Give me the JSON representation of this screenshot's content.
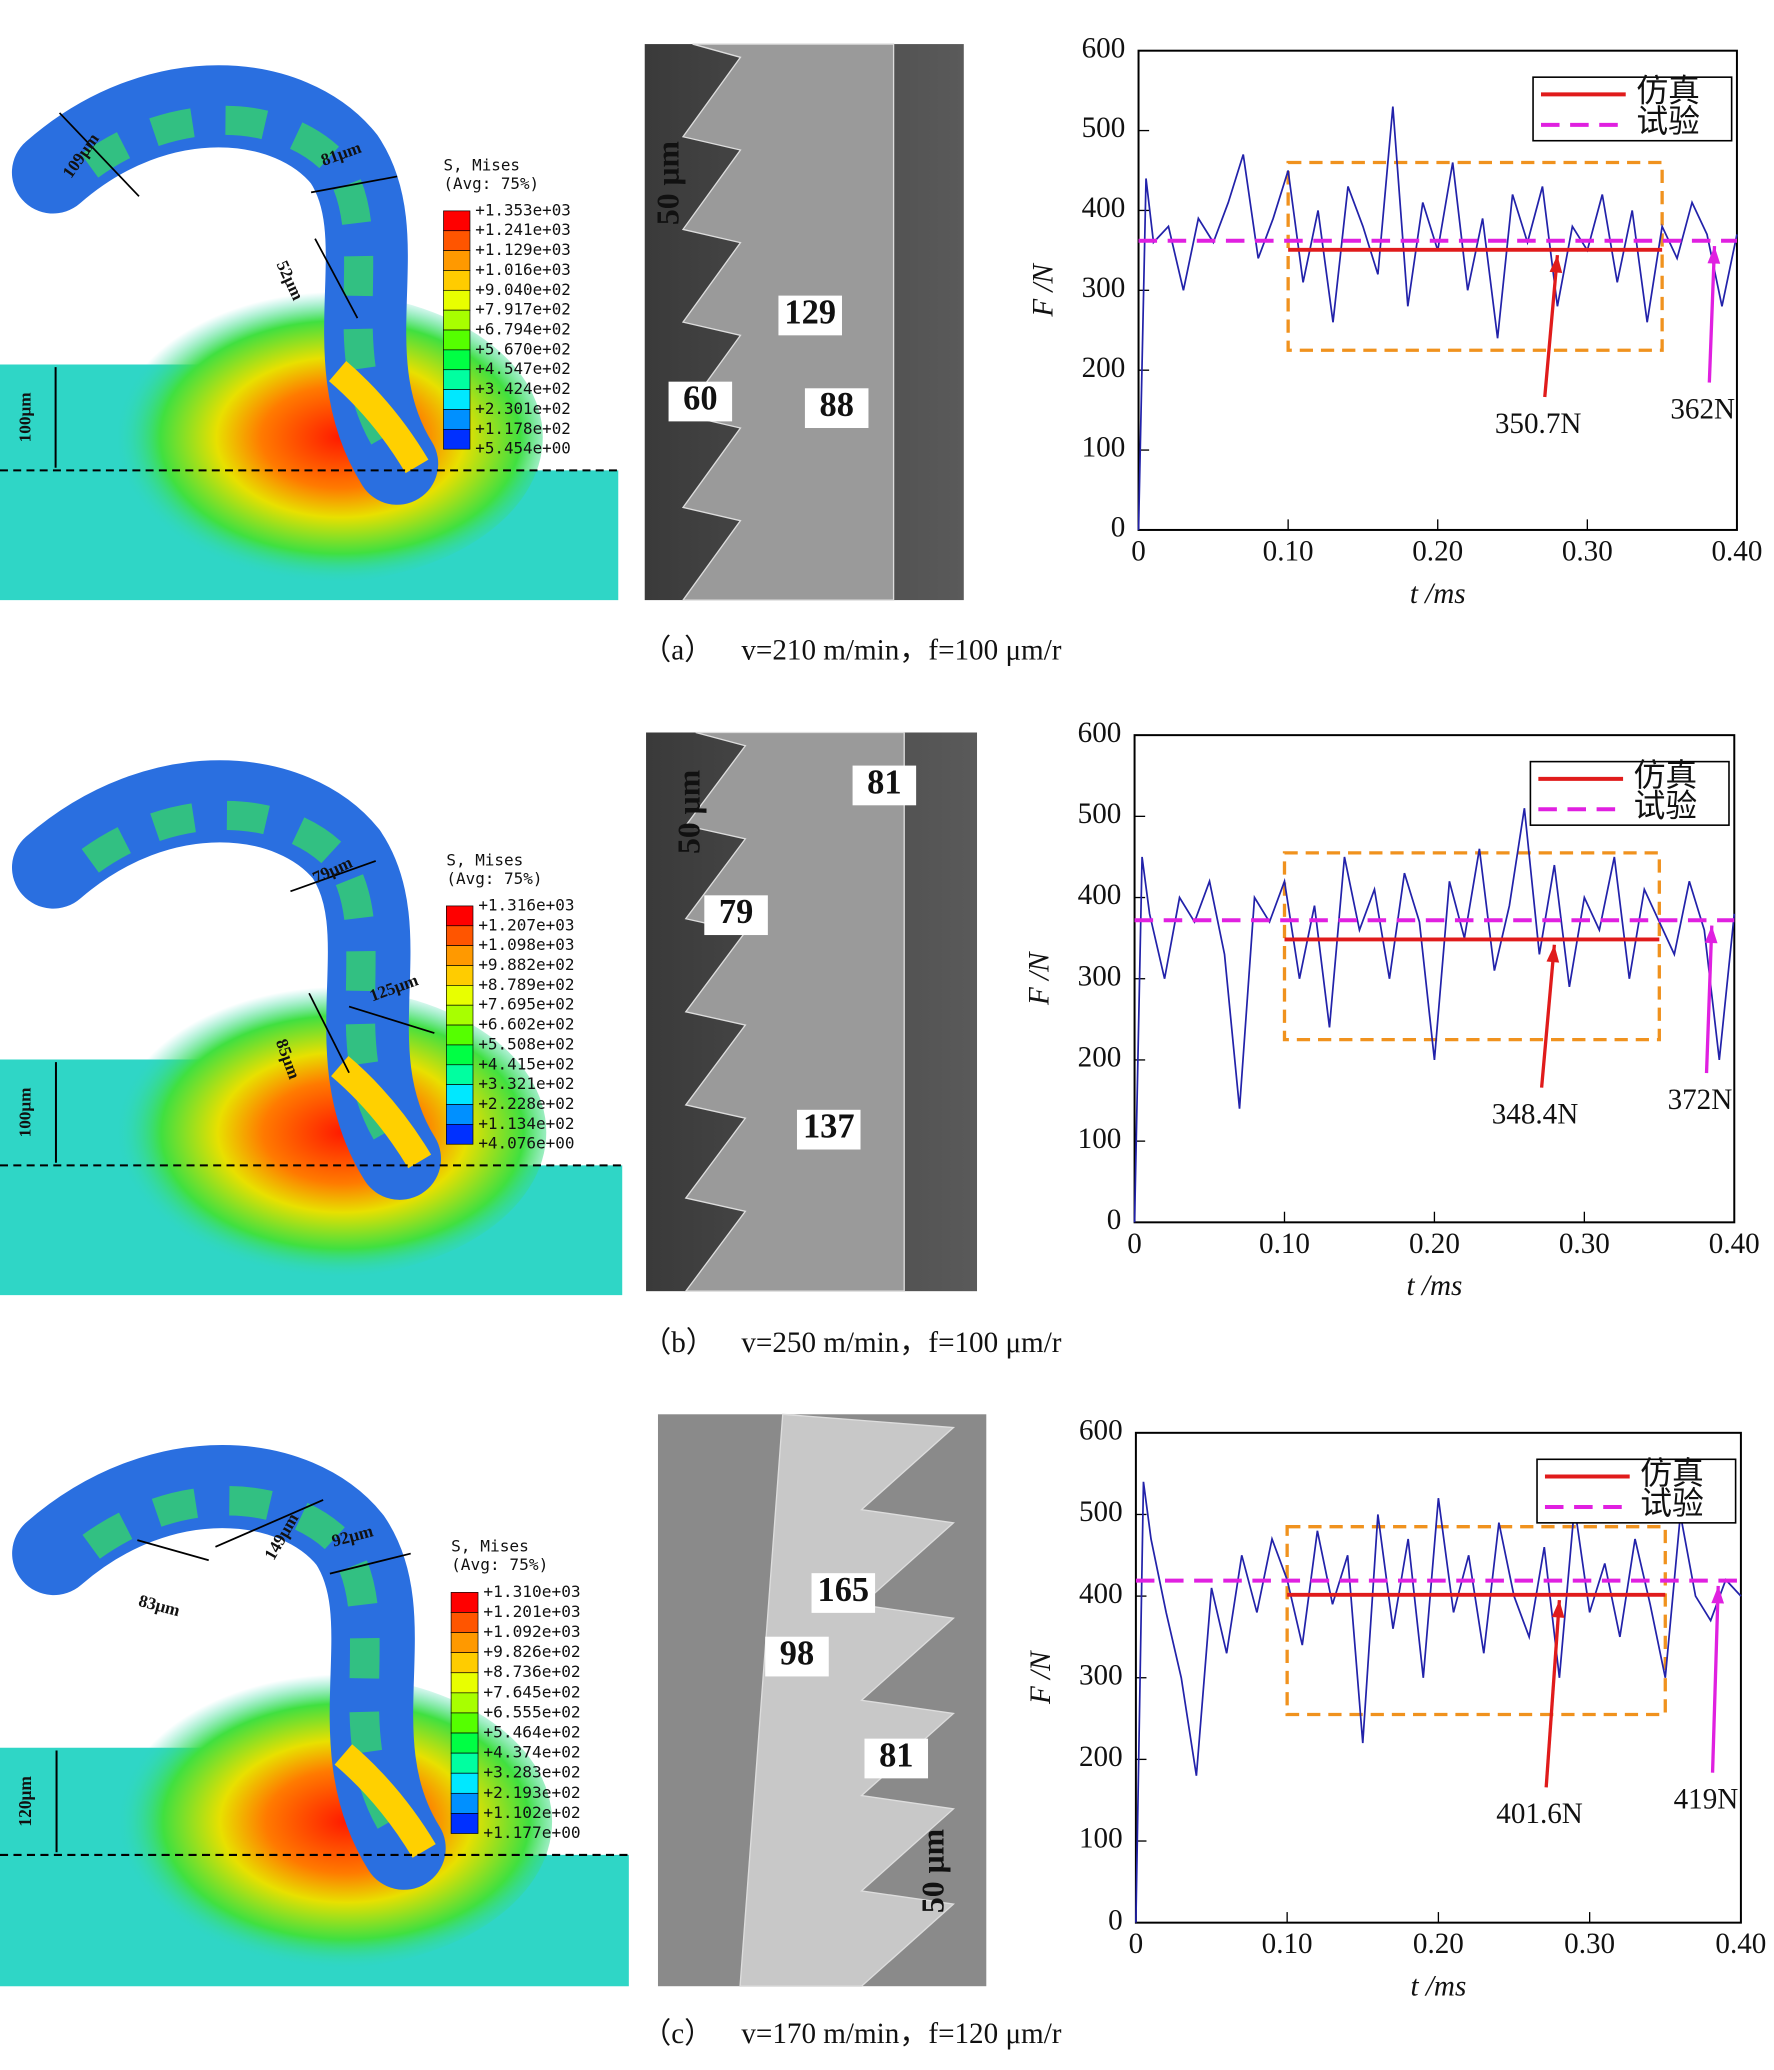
{
  "panels": [
    {
      "label": "（a）",
      "condition": "v=210 m/min，f=100 μm/r",
      "fem": {
        "legend_title": "S, Mises",
        "legend_subtitle": "(Avg: 75%)",
        "legend_values": [
          "+1.353e+03",
          "+1.241e+03",
          "+1.129e+03",
          "+1.016e+03",
          "+9.040e+02",
          "+7.917e+02",
          "+6.794e+02",
          "+5.670e+02",
          "+4.547e+02",
          "+3.424e+02",
          "+2.301e+02",
          "+1.178e+02",
          "+5.454e+00"
        ],
        "dimensions": [
          "109μm",
          "81μm",
          "52μm",
          "100μm"
        ]
      },
      "micrograph": {
        "labels": [
          "50 μm",
          "129",
          "60",
          "88"
        ]
      }
    },
    {
      "label": "（b）",
      "condition": "v=250 m/min，f=100 μm/r",
      "fem": {
        "legend_title": "S, Mises",
        "legend_subtitle": "(Avg: 75%)",
        "legend_values": [
          "+1.316e+03",
          "+1.207e+03",
          "+1.098e+03",
          "+9.882e+02",
          "+8.789e+02",
          "+7.695e+02",
          "+6.602e+02",
          "+5.508e+02",
          "+4.415e+02",
          "+3.321e+02",
          "+2.228e+02",
          "+1.134e+02",
          "+4.076e+00"
        ],
        "dimensions": [
          "79μm",
          "125μm",
          "85μm",
          "100μm"
        ]
      },
      "micrograph": {
        "labels": [
          "50 μm",
          "81",
          "79",
          "137"
        ]
      }
    },
    {
      "label": "（c）",
      "condition": "v=170 m/min，f=120 μm/r",
      "fem": {
        "legend_title": "S, Mises",
        "legend_subtitle": "(Avg: 75%)",
        "legend_values": [
          "+1.310e+03",
          "+1.201e+03",
          "+1.092e+03",
          "+9.826e+02",
          "+8.736e+02",
          "+7.645e+02",
          "+6.555e+02",
          "+5.464e+02",
          "+4.374e+02",
          "+3.283e+02",
          "+2.193e+02",
          "+1.102e+02",
          "+1.177e+00"
        ],
        "dimensions": [
          "83μm",
          "149μm",
          "92μm",
          "120μm"
        ]
      },
      "micrograph": {
        "labels": [
          "165",
          "98",
          "81",
          "50 μm"
        ]
      }
    }
  ],
  "chart_data": [
    {
      "type": "line",
      "xlabel": "t /ms",
      "ylabel": "F /N",
      "xlim": [
        0,
        0.4
      ],
      "xticks": [
        0,
        {
          "value": 0.1,
          "label": "0.10"
        },
        {
          "value": 0.2,
          "label": "0.20"
        },
        {
          "value": 0.3,
          "label": "0.30"
        },
        {
          "value": 0.4,
          "label": "0.40"
        }
      ],
      "ylim": [
        0,
        600
      ],
      "yticks": [
        0,
        100,
        200,
        300,
        400,
        500,
        600
      ],
      "legend": "upper right",
      "signal": {
        "color": "#2222aa",
        "x": [
          0,
          0.005,
          0.01,
          0.02,
          0.03,
          0.04,
          0.05,
          0.06,
          0.07,
          0.08,
          0.09,
          0.1,
          0.11,
          0.12,
          0.13,
          0.14,
          0.15,
          0.16,
          0.17,
          0.18,
          0.19,
          0.2,
          0.21,
          0.22,
          0.23,
          0.24,
          0.25,
          0.26,
          0.27,
          0.28,
          0.29,
          0.3,
          0.31,
          0.32,
          0.33,
          0.34,
          0.35,
          0.36,
          0.37,
          0.38,
          0.39,
          0.4
        ],
        "values": [
          0,
          440,
          360,
          380,
          300,
          390,
          360,
          410,
          470,
          340,
          390,
          450,
          310,
          400,
          260,
          430,
          380,
          320,
          530,
          280,
          410,
          350,
          460,
          300,
          390,
          240,
          420,
          360,
          430,
          280,
          380,
          350,
          420,
          310,
          400,
          260,
          380,
          340,
          410,
          370,
          280,
          370
        ]
      },
      "series": [
        {
          "name": "仿真",
          "color": "#e01b1b",
          "x": [
            0.1,
            0.35
          ],
          "values": [
            350.7,
            350.7
          ]
        },
        {
          "name": "试验",
          "color": "#e020e0",
          "dashed": true,
          "x": [
            0,
            0.4
          ],
          "values": [
            362,
            362
          ]
        }
      ],
      "box": {
        "color": "#f0921e",
        "x": [
          0.1,
          0.35
        ],
        "y": [
          225,
          460
        ]
      },
      "annotations": [
        "350.7N",
        "362N"
      ]
    },
    {
      "type": "line",
      "xlabel": "t /ms",
      "ylabel": "F /N",
      "xlim": [
        0,
        0.4
      ],
      "xticks": [
        0,
        {
          "value": 0.1,
          "label": "0.10"
        },
        {
          "value": 0.2,
          "label": "0.20"
        },
        {
          "value": 0.3,
          "label": "0.30"
        },
        {
          "value": 0.4,
          "label": "0.40"
        }
      ],
      "ylim": [
        0,
        600
      ],
      "yticks": [
        0,
        100,
        200,
        300,
        400,
        500,
        600
      ],
      "legend": "upper right",
      "signal": {
        "color": "#2222aa",
        "x": [
          0,
          0.005,
          0.01,
          0.02,
          0.03,
          0.04,
          0.05,
          0.06,
          0.07,
          0.08,
          0.09,
          0.1,
          0.11,
          0.12,
          0.13,
          0.14,
          0.15,
          0.16,
          0.17,
          0.18,
          0.19,
          0.2,
          0.21,
          0.22,
          0.23,
          0.24,
          0.25,
          0.26,
          0.27,
          0.28,
          0.29,
          0.3,
          0.31,
          0.32,
          0.33,
          0.34,
          0.35,
          0.36,
          0.37,
          0.38,
          0.39,
          0.4
        ],
        "values": [
          0,
          450,
          380,
          300,
          400,
          370,
          420,
          330,
          140,
          400,
          370,
          420,
          300,
          390,
          240,
          450,
          360,
          410,
          300,
          430,
          370,
          200,
          420,
          350,
          460,
          310,
          390,
          510,
          330,
          440,
          290,
          400,
          360,
          450,
          300,
          410,
          370,
          330,
          420,
          360,
          200,
          380
        ]
      },
      "series": [
        {
          "name": "仿真",
          "color": "#e01b1b",
          "x": [
            0.1,
            0.35
          ],
          "values": [
            348.4,
            348.4
          ]
        },
        {
          "name": "试验",
          "color": "#e020e0",
          "dashed": true,
          "x": [
            0,
            0.4
          ],
          "values": [
            372,
            372
          ]
        }
      ],
      "box": {
        "color": "#f0921e",
        "x": [
          0.1,
          0.35
        ],
        "y": [
          225,
          455
        ]
      },
      "annotations": [
        "348.4N",
        "372N"
      ]
    },
    {
      "type": "line",
      "xlabel": "t /ms",
      "ylabel": "F /N",
      "xlim": [
        0,
        0.4
      ],
      "xticks": [
        0,
        {
          "value": 0.1,
          "label": "0.10"
        },
        {
          "value": 0.2,
          "label": "0.20"
        },
        {
          "value": 0.3,
          "label": "0.30"
        },
        {
          "value": 0.4,
          "label": "0.40"
        }
      ],
      "ylim": [
        0,
        600
      ],
      "yticks": [
        0,
        100,
        200,
        300,
        400,
        500,
        600
      ],
      "legend": "upper right",
      "signal": {
        "color": "#2222aa",
        "x": [
          0,
          0.005,
          0.01,
          0.02,
          0.03,
          0.04,
          0.05,
          0.06,
          0.07,
          0.08,
          0.09,
          0.1,
          0.11,
          0.12,
          0.13,
          0.14,
          0.15,
          0.16,
          0.17,
          0.18,
          0.19,
          0.2,
          0.21,
          0.22,
          0.23,
          0.24,
          0.25,
          0.26,
          0.27,
          0.28,
          0.29,
          0.3,
          0.31,
          0.32,
          0.33,
          0.34,
          0.35,
          0.36,
          0.37,
          0.38,
          0.39,
          0.4
        ],
        "values": [
          0,
          540,
          470,
          380,
          300,
          180,
          410,
          330,
          450,
          380,
          470,
          420,
          340,
          480,
          390,
          450,
          220,
          500,
          360,
          470,
          300,
          520,
          380,
          450,
          330,
          490,
          400,
          350,
          460,
          300,
          510,
          380,
          440,
          350,
          470,
          390,
          300,
          500,
          400,
          370,
          420,
          400
        ]
      },
      "series": [
        {
          "name": "仿真",
          "color": "#e01b1b",
          "x": [
            0.1,
            0.35
          ],
          "values": [
            401.6,
            401.6
          ]
        },
        {
          "name": "试验",
          "color": "#e020e0",
          "dashed": true,
          "x": [
            0,
            0.4
          ],
          "values": [
            419,
            419
          ]
        }
      ],
      "box": {
        "color": "#f0921e",
        "x": [
          0.1,
          0.35
        ],
        "y": [
          255,
          485
        ]
      },
      "annotations": [
        "401.6N",
        "419N"
      ]
    }
  ]
}
